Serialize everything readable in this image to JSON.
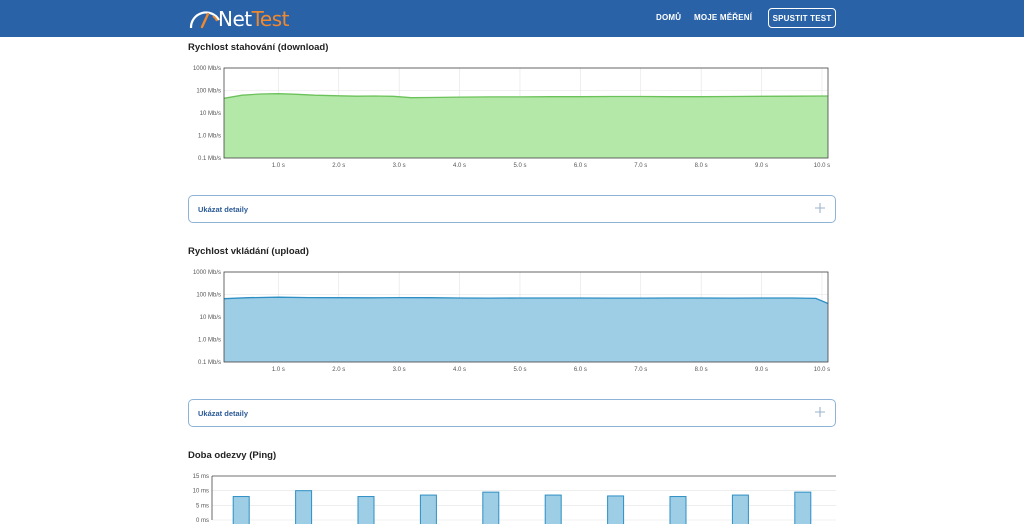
{
  "app": {
    "logo_part1": "Net",
    "logo_part2": "Test",
    "colors": {
      "navbar": "#2a62a7",
      "logo_accent": "#f0882d",
      "download_fill": "#b3e8a8",
      "download_line": "#6cc25a",
      "upload_fill": "#9ecde6",
      "upload_line": "#2d8fc4",
      "ping_fill": "#9ecde6",
      "ping_line": "#2d8fc4"
    }
  },
  "nav": {
    "home": "DOMŮ",
    "my_results": "MOJE MĚŘENÍ",
    "run_test": "SPUSTIT TEST"
  },
  "sections": {
    "download_title": "Rychlost stahování (download)",
    "upload_title": "Rychlost vkládání (upload)",
    "ping_title": "Doba odezvy (Ping)",
    "details_label": "Ukázat detaily"
  },
  "chart_data": [
    {
      "type": "area",
      "title": "Rychlost stahování (download)",
      "y_scale": "log",
      "ylim": [
        0.1,
        1000
      ],
      "y_ticks": [
        "0.1 Mb/s",
        "1.0 Mb/s",
        "10 Mb/s",
        "100 Mb/s",
        "1000 Mb/s"
      ],
      "y_tick_values": [
        0.1,
        1,
        10,
        100,
        1000
      ],
      "xlim": [
        0.1,
        10.1
      ],
      "x_ticks": [
        "1.0 s",
        "2.0 s",
        "3.0 s",
        "4.0 s",
        "5.0 s",
        "6.0 s",
        "7.0 s",
        "8.0 s",
        "9.0 s",
        "10.0 s"
      ],
      "x_tick_values": [
        1,
        2,
        3,
        4,
        5,
        6,
        7,
        8,
        9,
        10
      ],
      "grid": true,
      "series": [
        {
          "x": [
            0.1,
            0.4,
            0.7,
            1.0,
            1.3,
            1.6,
            2.0,
            2.3,
            2.6,
            2.9,
            3.2,
            3.5,
            4.0,
            4.5,
            5.0,
            5.5,
            6.0,
            6.5,
            7.0,
            7.5,
            8.0,
            8.5,
            9.0,
            9.5,
            10.1
          ],
          "y": [
            45,
            62,
            70,
            72,
            68,
            62,
            58,
            56,
            57,
            55,
            48,
            49,
            51,
            52,
            52,
            53,
            53,
            54,
            54,
            53,
            53,
            54,
            55,
            56,
            57
          ]
        }
      ]
    },
    {
      "type": "area",
      "title": "Rychlost vkládání (upload)",
      "y_scale": "log",
      "ylim": [
        0.1,
        1000
      ],
      "y_ticks": [
        "0.1 Mb/s",
        "1.0 Mb/s",
        "10 Mb/s",
        "100 Mb/s",
        "1000 Mb/s"
      ],
      "y_tick_values": [
        0.1,
        1,
        10,
        100,
        1000
      ],
      "xlim": [
        0.1,
        10.1
      ],
      "x_ticks": [
        "1.0 s",
        "2.0 s",
        "3.0 s",
        "4.0 s",
        "5.0 s",
        "6.0 s",
        "7.0 s",
        "8.0 s",
        "9.0 s",
        "10.0 s"
      ],
      "x_tick_values": [
        1,
        2,
        3,
        4,
        5,
        6,
        7,
        8,
        9,
        10
      ],
      "grid": true,
      "series": [
        {
          "x": [
            0.1,
            0.5,
            1.0,
            1.5,
            2.0,
            2.5,
            3.0,
            3.5,
            4.0,
            4.5,
            5.0,
            5.5,
            6.0,
            6.5,
            7.0,
            7.5,
            8.0,
            8.5,
            9.0,
            9.5,
            9.9,
            10.1
          ],
          "y": [
            65,
            72,
            76,
            73,
            72,
            71,
            73,
            72,
            70,
            69,
            70,
            70,
            70,
            69,
            69,
            70,
            70,
            69,
            70,
            70,
            67,
            40
          ]
        }
      ]
    },
    {
      "type": "bar",
      "title": "Doba odezvy (Ping)",
      "ylim": [
        0,
        15
      ],
      "y_ticks": [
        "0 ms",
        "5 ms",
        "10 ms",
        "15 ms"
      ],
      "y_tick_values": [
        0,
        5,
        10,
        15
      ],
      "grid": true,
      "values": [
        8,
        10,
        8,
        8.5,
        9.5,
        8.5,
        8.2,
        8,
        8.5,
        9.5
      ]
    }
  ]
}
